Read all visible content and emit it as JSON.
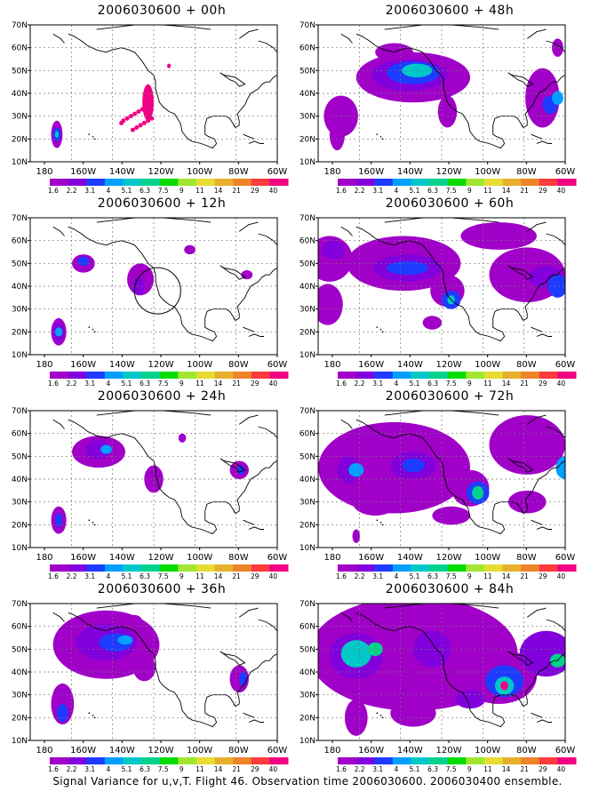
{
  "caption": "Signal Variance for u,v,T. Flight 46. Observation time 2006030600. 2006030400 ensemble.",
  "axes": {
    "x_ticks": [
      "180",
      "160W",
      "140W",
      "120W",
      "100W",
      "80W",
      "60W"
    ],
    "y_ticks": [
      "10N",
      "20N",
      "30N",
      "40N",
      "50N",
      "60N",
      "70N"
    ]
  },
  "colorbar": {
    "labels": [
      "1.6",
      "2.2",
      "3.1",
      "4",
      "5.1",
      "6.3",
      "7.5",
      "9",
      "11",
      "14",
      "21",
      "29",
      "40"
    ],
    "colors": [
      "#a000c8",
      "#8200dc",
      "#1e3cff",
      "#00a0ff",
      "#00c8c8",
      "#00d28c",
      "#00dc00",
      "#a0e632",
      "#e6dc32",
      "#e6af2d",
      "#f08228",
      "#fa3c3c",
      "#f00082"
    ]
  },
  "panels": [
    {
      "title": "2006030600 + 00h"
    },
    {
      "title": "2006030600 + 48h"
    },
    {
      "title": "2006030600 + 12h"
    },
    {
      "title": "2006030600 + 60h"
    },
    {
      "title": "2006030600 + 24h"
    },
    {
      "title": "2006030600 + 72h"
    },
    {
      "title": "2006030600 + 36h"
    },
    {
      "title": "2006030600 + 84h"
    }
  ],
  "chart_data": {
    "type": "heatmap",
    "description_units": "signal variance",
    "xlim": [
      "180",
      "60W"
    ],
    "ylim": [
      "10N",
      "70N"
    ],
    "levels": [
      1.6,
      2.2,
      3.1,
      4,
      5.1,
      6.3,
      7.5,
      9,
      11,
      14,
      21,
      29,
      40
    ],
    "panels": [
      {
        "title": "2006030600 + 00h",
        "lead_hours": 0
      },
      {
        "title": "2006030600 + 48h",
        "lead_hours": 48
      },
      {
        "title": "2006030600 + 12h",
        "lead_hours": 12
      },
      {
        "title": "2006030600 + 60h",
        "lead_hours": 60
      },
      {
        "title": "2006030600 + 24h",
        "lead_hours": 24
      },
      {
        "title": "2006030600 + 72h",
        "lead_hours": 72
      },
      {
        "title": "2006030600 + 36h",
        "lead_hours": 36
      },
      {
        "title": "2006030600 + 84h",
        "lead_hours": 84
      }
    ]
  }
}
